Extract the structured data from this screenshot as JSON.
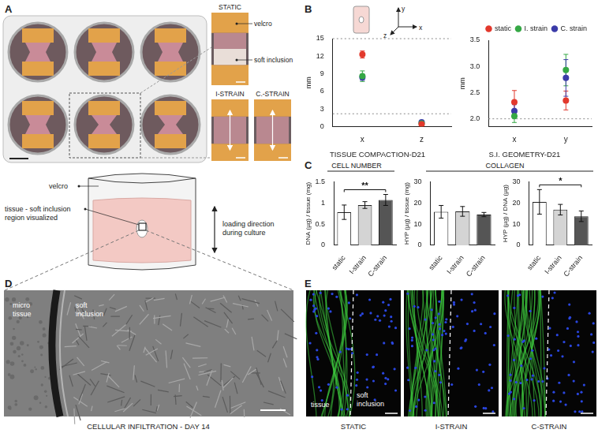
{
  "figure": {
    "A": {
      "letter": "A",
      "inset_titles": [
        "STATIC",
        "I-STRAIN",
        "C.-STRAIN"
      ],
      "inset_labels": [
        "velcro",
        "soft inclusion"
      ],
      "schematic": {
        "velcro": "velcro",
        "region": [
          "tissue - soft inclusion",
          "region visualized"
        ],
        "loading": [
          "loading direction",
          "during culture"
        ]
      }
    },
    "B": {
      "letter": "B",
      "axes_icon": [
        "y",
        "x",
        "z"
      ]
    },
    "C": {
      "letter": "C",
      "headers": [
        "CELL NUMBER",
        "COLLAGEN"
      ]
    },
    "D": {
      "letter": "D",
      "labels": [
        [
          "micro",
          "tissue"
        ],
        [
          "soft",
          "inclusion"
        ]
      ],
      "caption": "CELLULAR INFILTRATION - DAY 14"
    },
    "E": {
      "letter": "E",
      "labels": [
        "tissue",
        [
          "soft",
          "inclusion"
        ]
      ],
      "captions": [
        "STATIC",
        "I-STRAIN",
        "C-STRAIN"
      ]
    }
  },
  "chart_data": [
    {
      "type": "scatter",
      "title": "TISSUE COMPACTION-D21",
      "ylabel": "mm",
      "categories": [
        "x",
        "z"
      ],
      "series": [
        {
          "name": "static",
          "color": "#e2382c",
          "values": [
            12.3,
            0.4
          ],
          "errors": [
            0.6,
            0.1
          ]
        },
        {
          "name": "I. strain",
          "color": "#35a845",
          "values": [
            8.6,
            0.55
          ],
          "errors": [
            0.9,
            0.15
          ]
        },
        {
          "name": "C. strain",
          "color": "#3b3ba8",
          "values": [
            8.4,
            0.75
          ],
          "errors": [
            0.5,
            0.15
          ]
        }
      ],
      "ylim": [
        0,
        15
      ],
      "yticks": [
        0,
        3,
        6,
        9,
        12,
        15
      ],
      "reference_lines": [
        15,
        2.2
      ],
      "marker": "circle",
      "grid": false
    },
    {
      "type": "scatter",
      "title": "S.I. GEOMETRY-D21",
      "ylabel": "mm",
      "categories": [
        "x",
        "y"
      ],
      "series": [
        {
          "name": "static",
          "color": "#e2382c",
          "values": [
            2.32,
            2.35
          ],
          "errors": [
            0.22,
            0.18
          ]
        },
        {
          "name": "I. strain",
          "color": "#35a845",
          "values": [
            2.05,
            2.93
          ],
          "errors": [
            0.12,
            0.3
          ]
        },
        {
          "name": "C. strain",
          "color": "#3b3ba8",
          "values": [
            2.15,
            2.78
          ],
          "errors": [
            0.12,
            0.35
          ]
        }
      ],
      "ylim": [
        1.85,
        3.5
      ],
      "yticks": [
        {
          "value": 2,
          "label": "2.0"
        },
        {
          "value": 2.5,
          "label": "2.5"
        },
        {
          "value": 3,
          "label": "3.0"
        },
        {
          "value": 3.5,
          "label": "3.5"
        }
      ],
      "reference_lines": [
        2
      ],
      "marker": "circle",
      "legend": "top-right",
      "grid": false
    },
    {
      "type": "bar",
      "ylabel": "DNA (µg) / tissue (mg)",
      "categories": [
        "static",
        "I-strain",
        "C-strain"
      ],
      "values": [
        0.78,
        0.95,
        1.07
      ],
      "errors": [
        0.17,
        0.08,
        0.13
      ],
      "colors": [
        "#ffffff",
        "#d4d4d4",
        "#555555"
      ],
      "ylim": [
        0,
        1.5
      ],
      "yticks": [
        0,
        0.5,
        1,
        1.5
      ],
      "significance": [
        {
          "between": [
            "static",
            "C-strain"
          ],
          "label": "**"
        }
      ],
      "grid": false
    },
    {
      "type": "bar",
      "ylabel": "HYP (µg) / tissue (mg)",
      "categories": [
        "static",
        "I-strain",
        "C-strain"
      ],
      "values": [
        15.8,
        16,
        14.5
      ],
      "errors": [
        3,
        2.3,
        1
      ],
      "colors": [
        "#ffffff",
        "#d4d4d4",
        "#555555"
      ],
      "ylim": [
        0,
        30
      ],
      "yticks": [
        0,
        10,
        20,
        30
      ],
      "grid": false
    },
    {
      "type": "bar",
      "ylabel": "HYP (µg) / DNA (µg)",
      "categories": [
        "static",
        "I-strain",
        "C-strain"
      ],
      "values": [
        20.5,
        16.8,
        13.7
      ],
      "errors": [
        5.8,
        2.5,
        2.5
      ],
      "colors": [
        "#ffffff",
        "#d4d4d4",
        "#555555"
      ],
      "ylim": [
        0,
        30
      ],
      "yticks": [
        0,
        10,
        20,
        30
      ],
      "significance": [
        {
          "between": [
            "static",
            "C-strain"
          ],
          "label": "*"
        }
      ],
      "grid": false
    }
  ]
}
